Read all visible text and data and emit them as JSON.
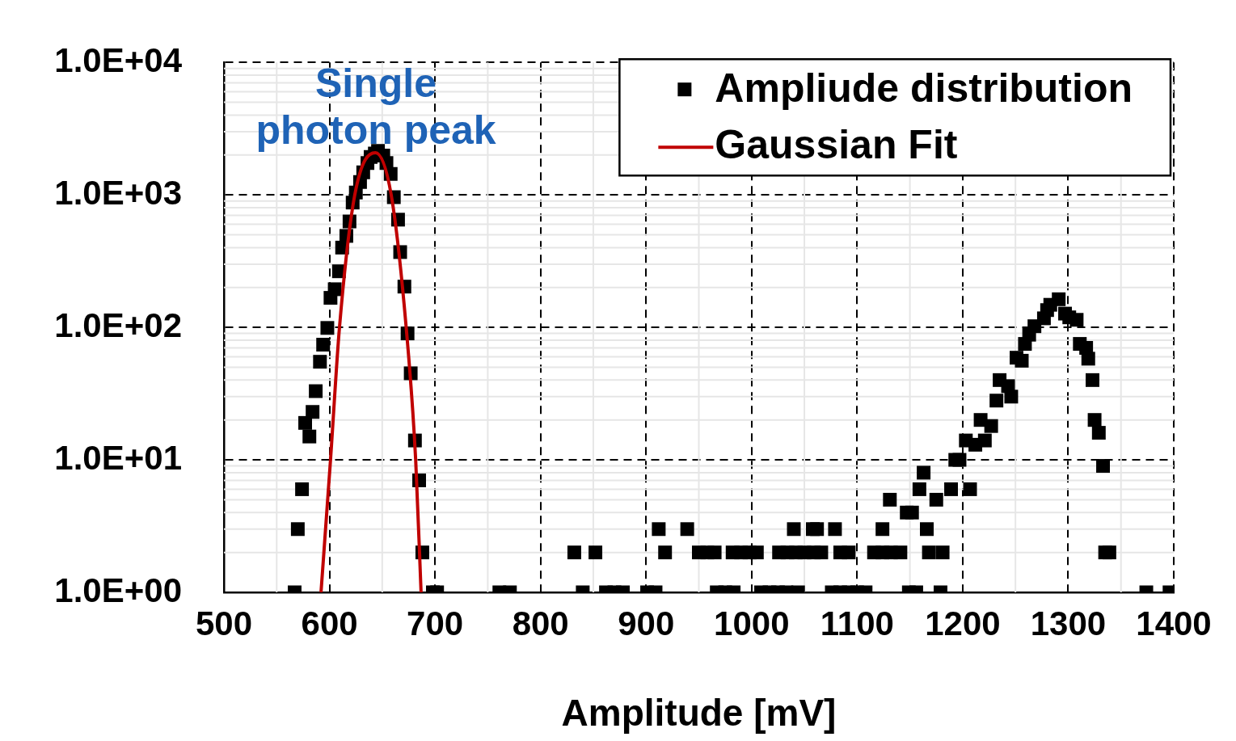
{
  "chart_data": {
    "type": "scatter",
    "xlabel": "Amplitude [mV]",
    "xlim": [
      500,
      1400
    ],
    "xticks": [
      500,
      600,
      700,
      800,
      900,
      1000,
      1100,
      1200,
      1300,
      1400
    ],
    "ylim": [
      1,
      10000
    ],
    "yticks": [
      {
        "value": 1,
        "label": "1.0E+00"
      },
      {
        "value": 10,
        "label": "1.0E+01"
      },
      {
        "value": 100,
        "label": "1.0E+02"
      },
      {
        "value": 1000,
        "label": "1.0E+03"
      },
      {
        "value": 10000,
        "label": "1.0E+04"
      }
    ],
    "log": "y",
    "grid": true,
    "legend": "top right",
    "marker": "square",
    "annotations": [
      "Single\nphoton peak"
    ],
    "series": [
      {
        "name": "Ampliude distribution",
        "color": "#000000",
        "x": [
          567,
          570,
          574,
          577,
          581,
          584,
          587,
          591,
          594,
          598,
          601,
          605,
          609,
          612,
          616,
          619,
          622,
          625,
          629,
          632,
          636,
          639,
          643,
          646,
          651,
          654,
          658,
          661,
          665,
          667,
          671,
          674,
          677,
          681,
          685,
          688,
          698,
          702,
          761,
          771,
          832,
          840,
          852,
          862,
          870,
          878,
          901,
          909,
          912,
          918,
          939,
          950,
          958,
          965,
          967,
          975,
          983,
          982,
          990,
          998,
          1005,
          1009,
          1017,
          1025,
          1026,
          1033,
          1034,
          1040,
          1042,
          1044,
          1050,
          1058,
          1059,
          1062,
          1066,
          1076,
          1079,
          1084,
          1084,
          1092,
          1092,
          1100,
          1108,
          1116,
          1124,
          1124,
          1131,
          1132,
          1141,
          1147,
          1149,
          1152,
          1156,
          1159,
          1163,
          1166,
          1168,
          1175,
          1179,
          1181,
          1189,
          1193,
          1197,
          1203,
          1207,
          1212,
          1217,
          1221,
          1227,
          1232,
          1235,
          1243,
          1246,
          1251,
          1256,
          1259,
          1263,
          1268,
          1277,
          1280,
          1283,
          1291,
          1297,
          1301,
          1308,
          1311,
          1317,
          1319,
          1323,
          1325,
          1329,
          1333,
          1335,
          1339,
          1374,
          1396
        ],
        "values": [
          1,
          3,
          6,
          19,
          15,
          23,
          33,
          55,
          74,
          99,
          167,
          194,
          265,
          400,
          490,
          630,
          875,
          1040,
          1250,
          1480,
          1740,
          1930,
          2050,
          2150,
          1980,
          1740,
          1440,
          960,
          650,
          370,
          203,
          90,
          45,
          14,
          7,
          2,
          1,
          1,
          1,
          1,
          2,
          1,
          2,
          1,
          1,
          1,
          1,
          1,
          3,
          2,
          3,
          2,
          2,
          2,
          1,
          1,
          1,
          2,
          2,
          2,
          2,
          1,
          1,
          1,
          2,
          1,
          2,
          3,
          2,
          1,
          2,
          3,
          2,
          3,
          2,
          1,
          3,
          1,
          2,
          1,
          2,
          1,
          1,
          2,
          2,
          3,
          5,
          2,
          2,
          4,
          1,
          4,
          1,
          6,
          8,
          3,
          2,
          5,
          1,
          2,
          6,
          10,
          10,
          14,
          6,
          13,
          20,
          14,
          18,
          28,
          40,
          36,
          30,
          59,
          56,
          75,
          88,
          102,
          117,
          135,
          148,
          163,
          127,
          119,
          114,
          75,
          70,
          58,
          40,
          20,
          16,
          9,
          2,
          2,
          1,
          1
        ]
      },
      {
        "name": "Gaussian Fit",
        "type": "line",
        "color": "#c00000",
        "marker": "none",
        "x": [
          592,
          601,
          609.5,
          624,
          643.6,
          658.5,
          672.7,
          681.7,
          686.8
        ],
        "values": [
          1,
          10,
          100,
          1000,
          2080,
          1000,
          100,
          10,
          1
        ]
      }
    ]
  }
}
